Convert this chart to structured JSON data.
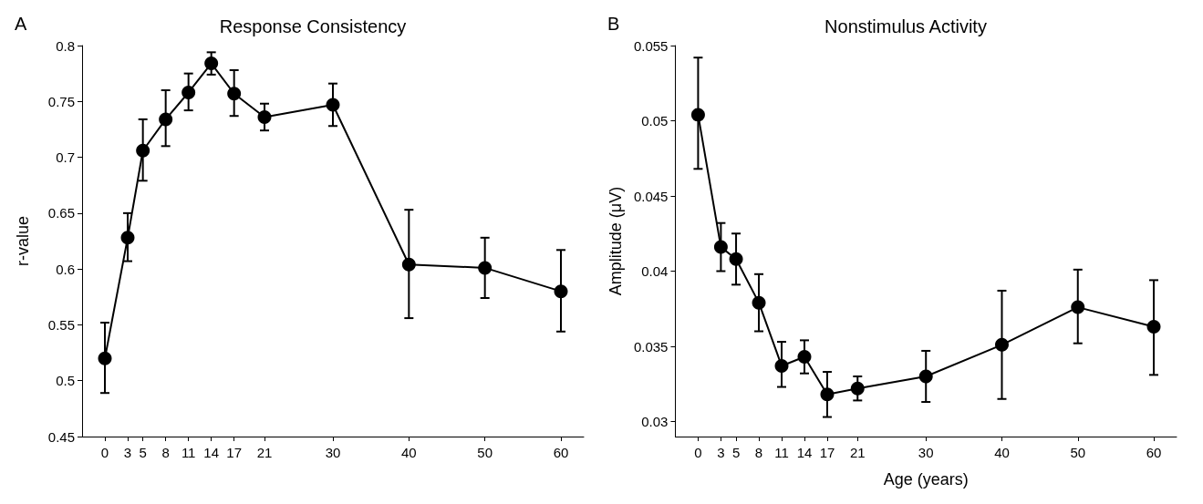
{
  "chart_data": [
    {
      "type": "line",
      "title": "Response Consistency",
      "ylabel": "r-value",
      "annotations": [
        "A"
      ],
      "x": [
        0,
        3,
        5,
        8,
        11,
        14,
        17,
        21,
        30,
        40,
        50,
        60
      ],
      "values": [
        0.52,
        0.628,
        0.706,
        0.734,
        0.758,
        0.784,
        0.757,
        0.736,
        0.747,
        0.604,
        0.601,
        0.58
      ],
      "errors": [
        [
          0.489,
          0.552
        ],
        [
          0.607,
          0.65
        ],
        [
          0.679,
          0.734
        ],
        [
          0.71,
          0.76
        ],
        [
          0.742,
          0.775
        ],
        [
          0.774,
          0.794
        ],
        [
          0.737,
          0.778
        ],
        [
          0.724,
          0.748
        ],
        [
          0.728,
          0.766
        ],
        [
          0.556,
          0.653
        ],
        [
          0.574,
          0.628
        ],
        [
          0.544,
          0.617
        ]
      ],
      "color": "#000000",
      "marker": "circle",
      "line_style": "solid",
      "grid": false,
      "xlim": [
        -3,
        63
      ],
      "xticks": [
        0,
        3,
        5,
        8,
        11,
        14,
        17,
        21,
        30,
        40,
        50,
        60
      ],
      "ylim": [
        0.45,
        0.8
      ],
      "yticks": [
        0.45,
        0.5,
        0.55,
        0.6,
        0.65,
        0.7,
        0.75,
        0.8
      ]
    },
    {
      "type": "line",
      "title": "Nonstimulus Activity",
      "xlabel": "Age (years)",
      "ylabel": "Amplitude (μV)",
      "annotations": [
        "B"
      ],
      "x": [
        0,
        3,
        5,
        8,
        11,
        14,
        17,
        21,
        30,
        40,
        50,
        60
      ],
      "values": [
        0.0504,
        0.0416,
        0.0408,
        0.0379,
        0.0337,
        0.0343,
        0.0318,
        0.0322,
        0.033,
        0.0351,
        0.0376,
        0.0363
      ],
      "errors": [
        [
          0.0468,
          0.0542
        ],
        [
          0.04,
          0.0432
        ],
        [
          0.0391,
          0.0425
        ],
        [
          0.036,
          0.0398
        ],
        [
          0.0323,
          0.0353
        ],
        [
          0.0332,
          0.0354
        ],
        [
          0.0303,
          0.0333
        ],
        [
          0.0314,
          0.033
        ],
        [
          0.0313,
          0.0347
        ],
        [
          0.0315,
          0.0387
        ],
        [
          0.0352,
          0.0401
        ],
        [
          0.0331,
          0.0394
        ]
      ],
      "color": "#000000",
      "marker": "circle",
      "line_style": "solid",
      "grid": false,
      "xlim": [
        -3,
        63
      ],
      "xticks": [
        0,
        3,
        5,
        8,
        11,
        14,
        17,
        21,
        30,
        40,
        50,
        60
      ],
      "ylim": [
        0.029,
        0.055
      ],
      "yticks": [
        0.03,
        0.035,
        0.04,
        0.045,
        0.05,
        0.055
      ]
    }
  ]
}
